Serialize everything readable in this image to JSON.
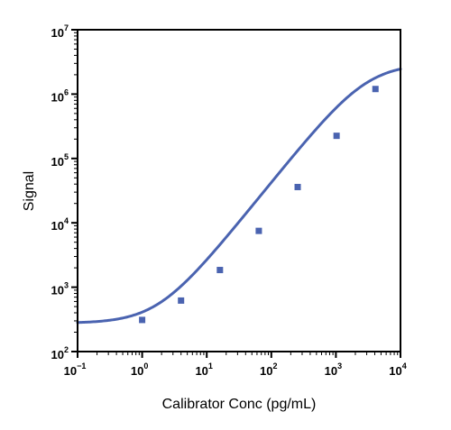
{
  "chart_data": {
    "type": "scatter",
    "title": "",
    "xlabel": "Calibrator Conc (pg/mL)",
    "ylabel": "Signal",
    "x_scale": "log",
    "y_scale": "log",
    "xlim": [
      0.1,
      10000
    ],
    "ylim": [
      100,
      10000000
    ],
    "x_ticks": [
      {
        "value": 0.1,
        "base": "10",
        "exp": "−1"
      },
      {
        "value": 1,
        "base": "10",
        "exp": "0"
      },
      {
        "value": 10,
        "base": "10",
        "exp": "1"
      },
      {
        "value": 100,
        "base": "10",
        "exp": "2"
      },
      {
        "value": 1000,
        "base": "10",
        "exp": "3"
      },
      {
        "value": 10000,
        "base": "10",
        "exp": "4"
      }
    ],
    "y_ticks": [
      {
        "value": 100,
        "base": "10",
        "exp": "2"
      },
      {
        "value": 1000,
        "base": "10",
        "exp": "3"
      },
      {
        "value": 10000,
        "base": "10",
        "exp": "4"
      },
      {
        "value": 100000,
        "base": "10",
        "exp": "5"
      },
      {
        "value": 1000000,
        "base": "10",
        "exp": "6"
      },
      {
        "value": 10000000,
        "base": "10",
        "exp": "7"
      }
    ],
    "grid": false,
    "color": "#4a63b0",
    "series": [
      {
        "kind": "points",
        "marker": "square",
        "x": [
          1,
          4,
          16,
          64,
          256,
          1024,
          4096
        ],
        "y": [
          310,
          620,
          1850,
          7500,
          36000,
          225000,
          1200000
        ]
      },
      {
        "kind": "fit_curve",
        "model": "4PL",
        "bottom": 275,
        "top": 3000000,
        "ec50": 3000,
        "hill": 1.25
      }
    ]
  }
}
